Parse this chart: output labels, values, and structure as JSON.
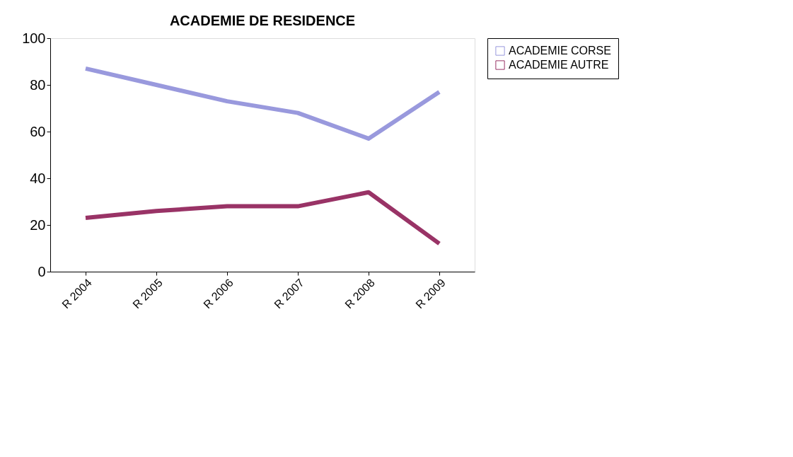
{
  "chart_data": {
    "type": "line",
    "title": "ACADEMIE DE RESIDENCE",
    "categories": [
      "R 2004",
      "R 2005",
      "R 2006",
      "R 2007",
      "R 2008",
      "R 2009"
    ],
    "series": [
      {
        "name": "ACADEMIE CORSE",
        "color": "#9999dd",
        "values": [
          87,
          80,
          73,
          68,
          57,
          77
        ]
      },
      {
        "name": "ACADEMIE AUTRE",
        "color": "#993366",
        "values": [
          23,
          26,
          28,
          28,
          34,
          12
        ]
      }
    ],
    "ylim": [
      0,
      100
    ],
    "yticks": [
      0,
      20,
      40,
      60,
      80,
      100
    ],
    "grid": false,
    "legend": "right",
    "marker": "none",
    "line_style": "solid"
  }
}
